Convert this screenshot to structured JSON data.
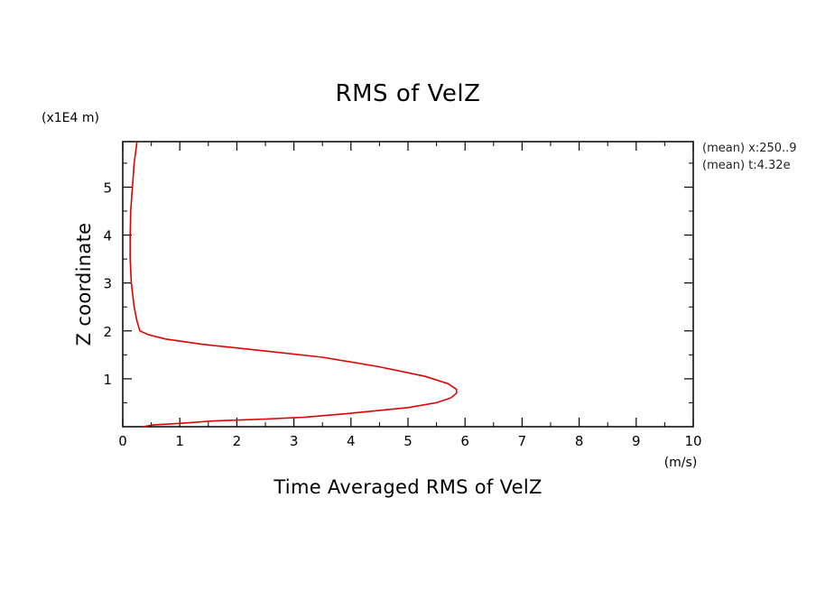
{
  "chart_data": {
    "type": "line",
    "title": "RMS of VelZ",
    "xlabel": "Time Averaged RMS of VelZ",
    "ylabel": "Z coordinate",
    "x_unit": "(m/s)",
    "y_unit": "(x1E4 m)",
    "xlim": [
      0,
      10
    ],
    "ylim": [
      0,
      5.95
    ],
    "x_ticks": [
      0,
      1,
      2,
      3,
      4,
      5,
      6,
      7,
      8,
      9,
      10
    ],
    "x_tick_labels": [
      "0",
      "1",
      "2",
      "3",
      "4",
      "5",
      "6",
      "7",
      "8",
      "9",
      "10"
    ],
    "y_ticks": [
      1,
      2,
      3,
      4,
      5
    ],
    "y_tick_labels": [
      "1",
      "2",
      "3",
      "4",
      "5"
    ],
    "grid": false,
    "line_color": "#e00000",
    "series": [
      {
        "x": [
          0.35,
          0.55,
          1.0,
          1.6,
          2.5,
          3.2,
          4.0,
          5.0,
          5.5,
          5.75,
          5.85,
          5.85,
          5.7,
          5.3,
          4.5,
          3.5,
          2.5,
          1.4,
          0.75,
          0.45,
          0.3,
          0.25,
          0.2,
          0.15,
          0.13,
          0.13,
          0.14,
          0.17,
          0.2,
          0.25
        ],
        "y": [
          0.0,
          0.04,
          0.07,
          0.12,
          0.16,
          0.2,
          0.28,
          0.4,
          0.5,
          0.6,
          0.7,
          0.78,
          0.9,
          1.05,
          1.25,
          1.45,
          1.58,
          1.72,
          1.83,
          1.92,
          2.0,
          2.2,
          2.5,
          3.0,
          3.5,
          4.0,
          4.5,
          5.0,
          5.5,
          5.95
        ]
      }
    ]
  },
  "annotations": {
    "line1": "(mean) x:250..9",
    "line2": "(mean) t:4.32e"
  }
}
